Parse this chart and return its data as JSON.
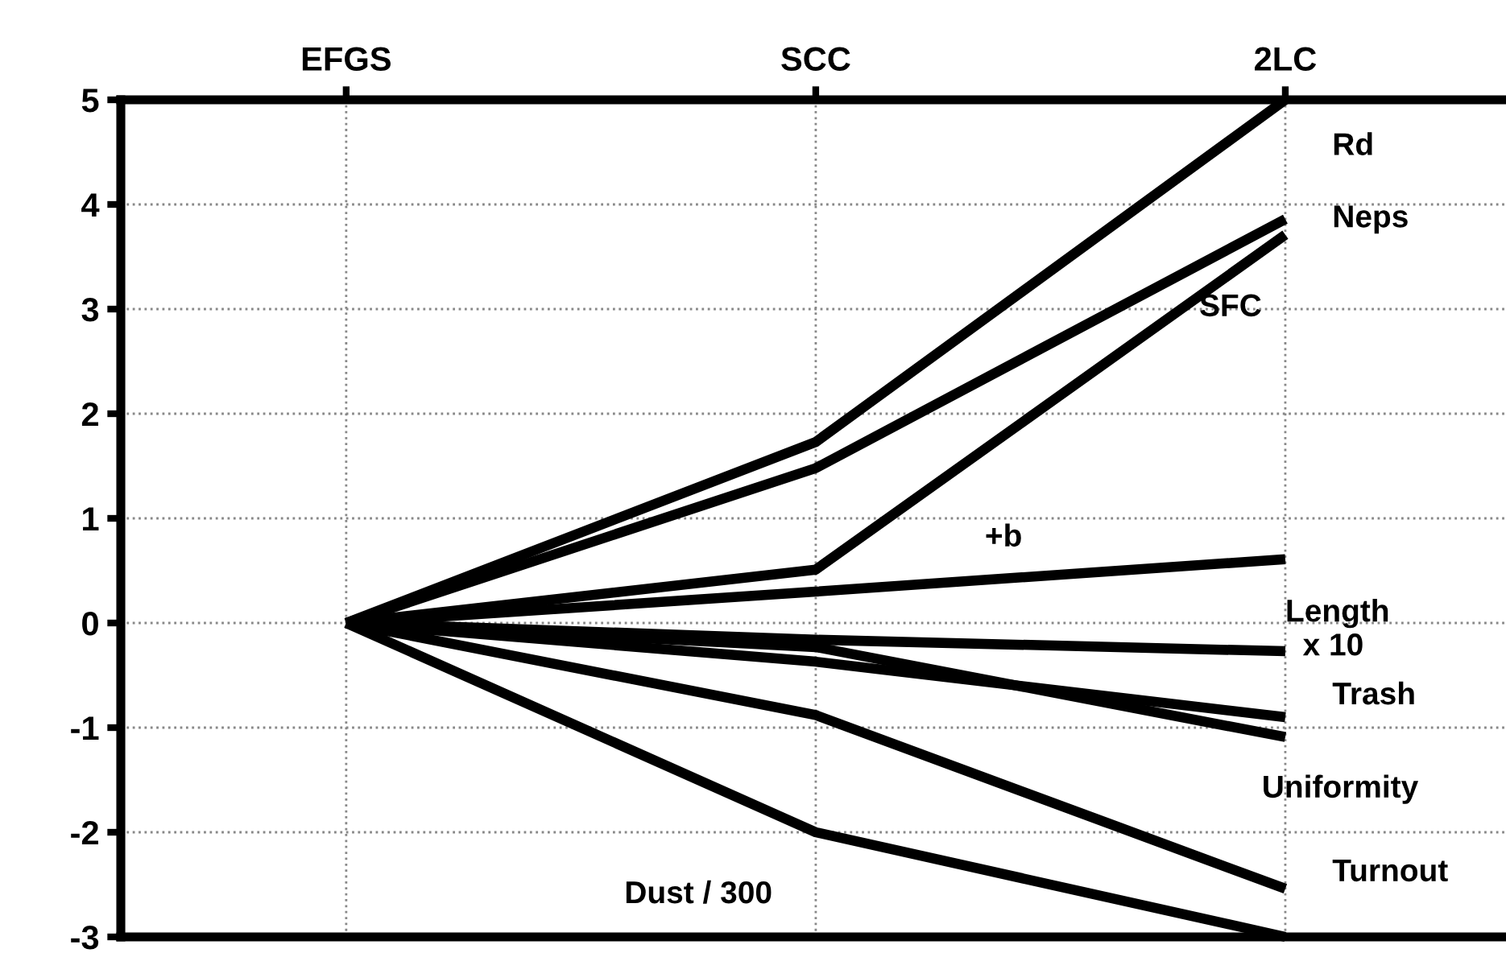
{
  "chart_data": {
    "type": "line",
    "categories": [
      "EFGS",
      "SCC",
      "2LC"
    ],
    "series": [
      {
        "name": "Rd",
        "color": "#000000",
        "values": [
          0,
          1.73,
          5.0
        ]
      },
      {
        "name": "Neps",
        "color": "#000000",
        "values": [
          0,
          1.48,
          3.86
        ]
      },
      {
        "name": "SFC",
        "color": "#000000",
        "values": [
          0,
          0.51,
          3.71
        ]
      },
      {
        "name": "+b",
        "color": "#000000",
        "values": [
          0,
          0.3,
          0.61
        ]
      },
      {
        "name": "Length\n  x 10",
        "color": "#000000",
        "values": [
          0,
          -0.16,
          -0.27
        ]
      },
      {
        "name": "Trash",
        "color": "#000000",
        "values": [
          0,
          -0.37,
          -0.9
        ]
      },
      {
        "name": "Uniformity",
        "color": "#000000",
        "values": [
          0,
          -0.23,
          -1.09
        ]
      },
      {
        "name": "Turnout",
        "color": "#000000",
        "values": [
          0,
          -0.88,
          -2.54
        ]
      },
      {
        "name": "Dust / 300",
        "color": "#000000",
        "values": [
          0,
          -2.0,
          -3.0
        ]
      }
    ],
    "ylim": [
      -3,
      5
    ],
    "yticks": [
      -3,
      -2,
      -1,
      0,
      1,
      2,
      3,
      4,
      5
    ],
    "grid": true,
    "legend": false,
    "marker": "none",
    "line_style": "solid"
  }
}
